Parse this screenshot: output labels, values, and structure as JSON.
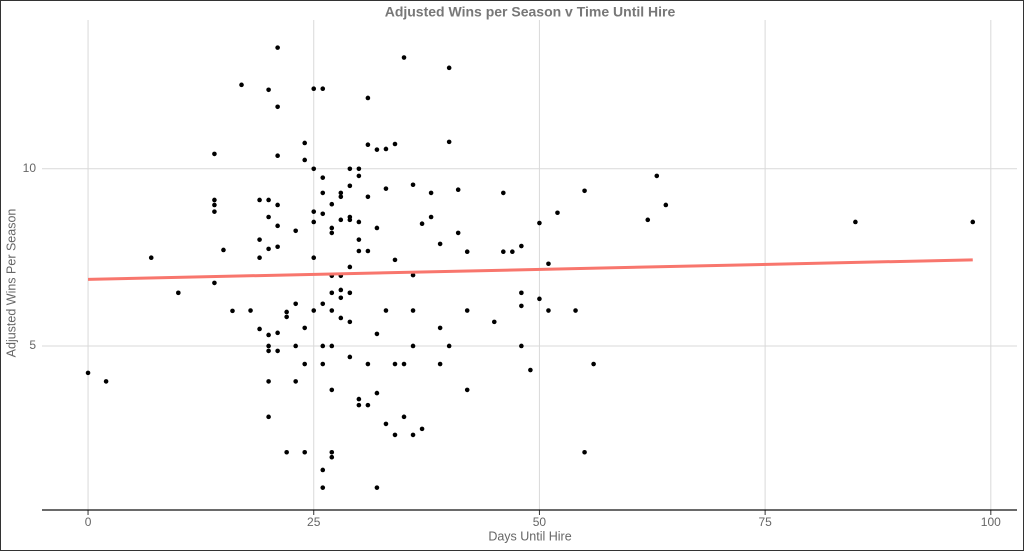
{
  "chart_data": {
    "type": "scatter",
    "title": "Adjusted Wins per Season v Time Until Hire",
    "x_label": "Days Until Hire",
    "y_label": "Adjusted Wins Per Season",
    "color": "#000000",
    "grid": true,
    "xlim": [
      -5.1,
      102.9
    ],
    "ylim": [
      0.37,
      14.2
    ],
    "xticks": [
      0,
      25,
      50,
      75,
      100
    ],
    "yticks": [
      5,
      10
    ],
    "x": [
      0,
      2,
      7,
      10,
      14,
      14,
      14,
      14,
      14,
      15,
      16,
      17,
      18,
      19,
      19,
      19,
      19,
      20,
      20,
      20,
      20,
      20,
      20,
      20,
      20,
      20,
      21,
      21,
      21,
      21,
      21,
      21,
      21,
      21,
      22,
      22,
      22,
      23,
      23,
      23,
      23,
      24,
      24,
      24,
      24,
      24,
      25,
      25,
      25,
      25,
      25,
      25,
      26,
      26,
      26,
      26,
      26,
      26,
      26,
      26,
      26,
      27,
      27,
      27,
      27,
      27,
      27,
      27,
      27,
      27,
      27,
      28,
      28,
      28,
      28,
      28,
      28,
      28,
      29,
      29,
      29,
      29,
      29,
      29,
      29,
      29,
      30,
      30,
      30,
      30,
      30,
      30,
      30,
      31,
      31,
      31,
      31,
      31,
      31,
      32,
      32,
      32,
      32,
      32,
      33,
      33,
      33,
      33,
      34,
      34,
      34,
      34,
      35,
      35,
      35,
      36,
      36,
      36,
      36,
      36,
      37,
      37,
      38,
      38,
      39,
      39,
      39,
      40,
      40,
      40,
      41,
      41,
      42,
      42,
      42,
      45,
      46,
      46,
      47,
      48,
      48,
      48,
      48,
      49,
      50,
      50,
      51,
      51,
      52,
      54,
      55,
      55,
      56,
      62,
      63,
      64,
      85,
      98
    ],
    "values": [
      4.24,
      4.0,
      7.49,
      6.5,
      10.42,
      9.12,
      8.98,
      8.79,
      6.78,
      7.71,
      5.99,
      12.37,
      6.0,
      9.12,
      8.0,
      7.49,
      5.48,
      12.23,
      9.12,
      8.64,
      7.74,
      5.31,
      5.0,
      4.86,
      4.0,
      3.0,
      13.42,
      11.75,
      10.37,
      8.98,
      8.39,
      7.8,
      5.37,
      4.86,
      5.96,
      5.82,
      2.0,
      8.25,
      6.19,
      5.0,
      4.0,
      10.73,
      10.25,
      5.51,
      4.49,
      2.0,
      12.26,
      10.0,
      8.79,
      8.5,
      7.49,
      6.0,
      12.26,
      9.75,
      9.32,
      8.73,
      6.19,
      5.0,
      4.49,
      1.5,
      1.0,
      9.0,
      8.33,
      8.19,
      6.98,
      6.5,
      6.0,
      5.0,
      3.76,
      2.0,
      1.86,
      9.32,
      9.21,
      8.56,
      6.98,
      6.58,
      6.36,
      5.79,
      10.0,
      9.52,
      8.64,
      8.56,
      7.23,
      6.5,
      5.68,
      4.69,
      10.0,
      9.8,
      8.5,
      8.0,
      7.68,
      3.5,
      3.33,
      12.0,
      10.68,
      9.21,
      7.68,
      4.49,
      3.33,
      10.54,
      8.33,
      5.34,
      3.67,
      1.0,
      10.56,
      9.44,
      6.0,
      2.8,
      10.7,
      7.43,
      4.49,
      2.49,
      13.14,
      4.49,
      3.0,
      9.55,
      7.0,
      6.0,
      5.0,
      2.49,
      8.45,
      2.66,
      9.32,
      8.64,
      7.88,
      5.51,
      4.49,
      12.85,
      10.76,
      5.0,
      9.41,
      8.19,
      7.66,
      6.0,
      3.76,
      5.68,
      9.32,
      7.66,
      7.66,
      7.82,
      6.5,
      6.13,
      5.0,
      4.32,
      8.47,
      6.33,
      7.32,
      6.0,
      8.76,
      6.0,
      9.38,
      2.0,
      4.49,
      8.56,
      9.8,
      8.98,
      8.5,
      8.5
    ],
    "trend_line": {
      "x": [
        0,
        98
      ],
      "values": [
        6.88,
        7.43
      ],
      "color": "#f8766d"
    }
  }
}
